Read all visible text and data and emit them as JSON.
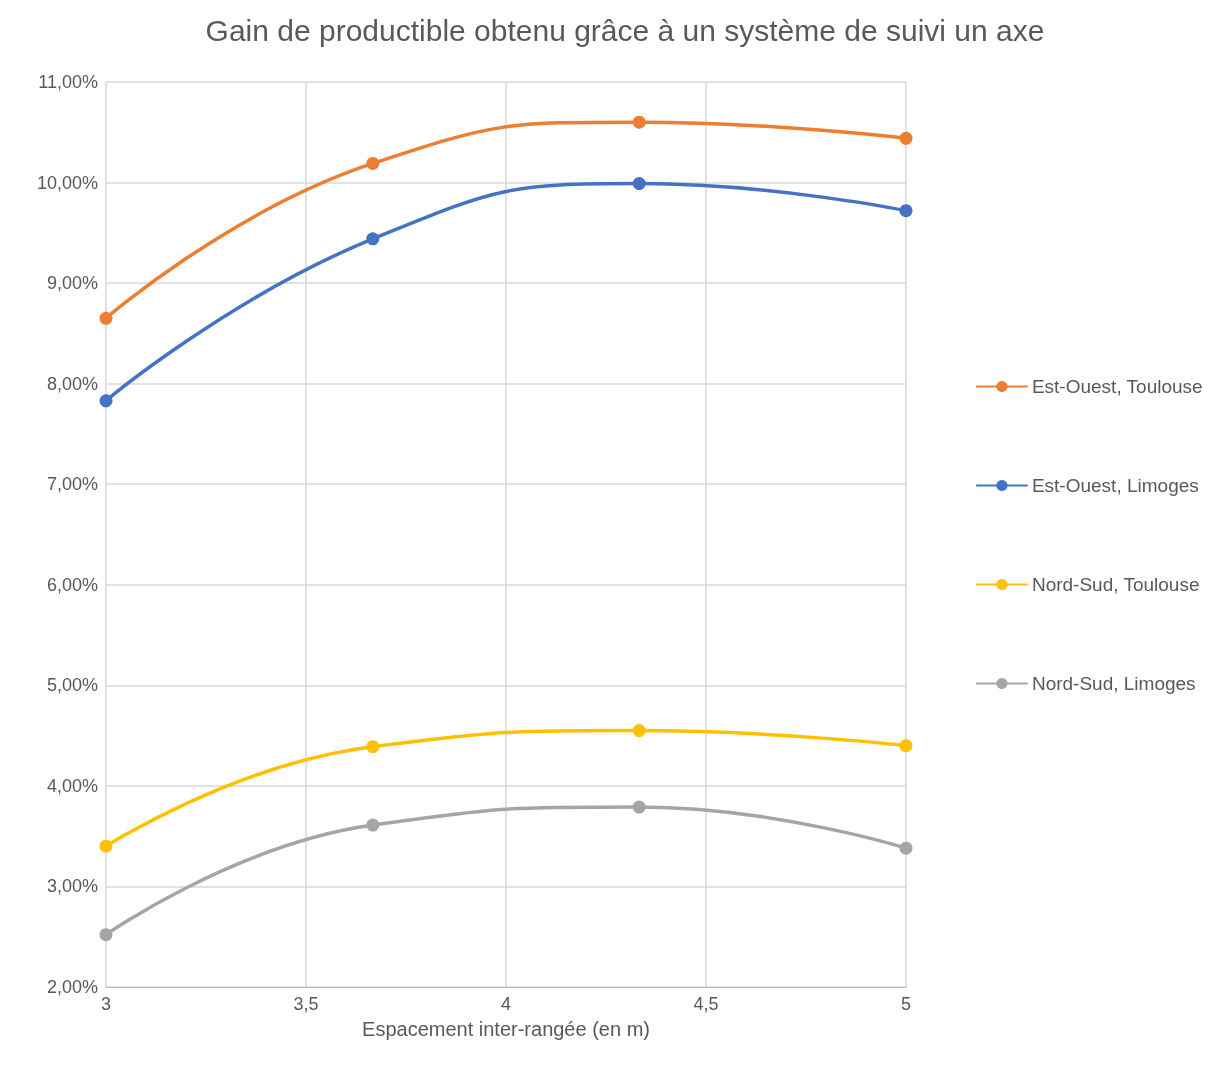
{
  "chart_data": {
    "type": "line",
    "title": "Gain de productible obtenu grâce à un système de suivi un axe",
    "xlabel": "Espacement inter-rangée (en m)",
    "x": [
      3,
      3.667,
      4.333,
      5
    ],
    "series": [
      {
        "name": "Est-Ouest, Toulouse",
        "color": "#ed7d31",
        "values": [
          8.65,
          10.19,
          10.6,
          10.44
        ]
      },
      {
        "name": "Est-Ouest, Limoges",
        "color": "#4472c4",
        "values": [
          7.83,
          9.44,
          9.99,
          9.72
        ]
      },
      {
        "name": "Nord-Sud, Toulouse",
        "color": "#ffc000",
        "values": [
          3.4,
          4.39,
          4.55,
          4.4
        ]
      },
      {
        "name": "Nord-Sud, Limoges",
        "color": "#a5a5a5",
        "values": [
          2.52,
          3.61,
          3.79,
          3.38
        ]
      }
    ],
    "xlim": [
      3,
      5
    ],
    "xticks": [
      3,
      {
        "value": 3.5,
        "label": "3,5"
      },
      4,
      {
        "value": 4.5,
        "label": "4,5"
      },
      5
    ],
    "ylim": [
      2,
      11
    ],
    "yticks": [
      {
        "value": 2,
        "label": "2,00%"
      },
      {
        "value": 3,
        "label": "3,00%"
      },
      {
        "value": 4,
        "label": "4,00%"
      },
      {
        "value": 5,
        "label": "5,00%"
      },
      {
        "value": 6,
        "label": "6,00%"
      },
      {
        "value": 7,
        "label": "7,00%"
      },
      {
        "value": 8,
        "label": "8,00%"
      },
      {
        "value": 9,
        "label": "9,00%"
      },
      {
        "value": 10,
        "label": "10,00%"
      },
      {
        "value": 11,
        "label": "11,00%"
      }
    ],
    "grid": true,
    "legend": "right",
    "marker": "circle",
    "line_style": "solid"
  }
}
